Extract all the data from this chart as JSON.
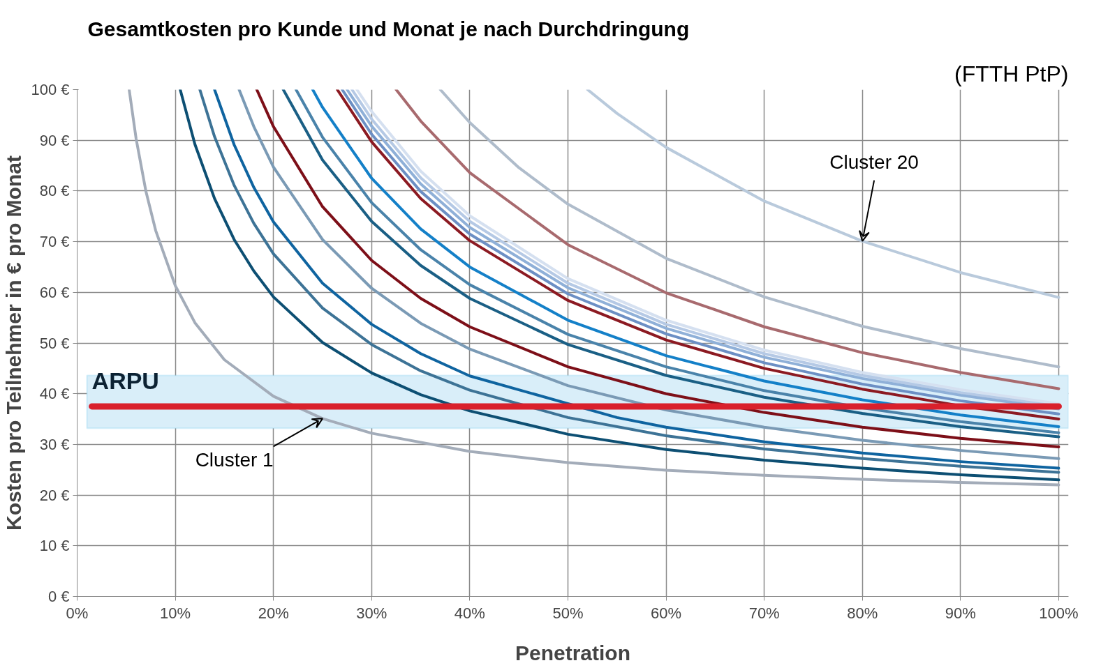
{
  "chart_data": {
    "type": "line",
    "title": "Gesamtkosten pro Kunde und Monat je nach Durchdringung",
    "subtitle": "(FTTH PtP)",
    "xlabel": "Penetration",
    "ylabel": "Kosten pro Teilnehmer in € pro Monat",
    "xlim": [
      0,
      101
    ],
    "ylim": [
      0,
      100
    ],
    "xticks": [
      {
        "value": 0,
        "label": "0%"
      },
      {
        "value": 10,
        "label": "10%"
      },
      {
        "value": 20,
        "label": "20%"
      },
      {
        "value": 30,
        "label": "30%"
      },
      {
        "value": 40,
        "label": "40%"
      },
      {
        "value": 50,
        "label": "50%"
      },
      {
        "value": 60,
        "label": "60%"
      },
      {
        "value": 70,
        "label": "70%"
      },
      {
        "value": 80,
        "label": "80%"
      },
      {
        "value": 90,
        "label": "90%"
      },
      {
        "value": 100,
        "label": "100%"
      }
    ],
    "yticks": [
      {
        "value": 0,
        "label": "0 €"
      },
      {
        "value": 10,
        "label": "10 €"
      },
      {
        "value": 20,
        "label": "20 €"
      },
      {
        "value": 30,
        "label": "30 €"
      },
      {
        "value": 40,
        "label": "40 €"
      },
      {
        "value": 50,
        "label": "50 €"
      },
      {
        "value": 60,
        "label": "60 €"
      },
      {
        "value": 70,
        "label": "70 €"
      },
      {
        "value": 80,
        "label": "80 €"
      },
      {
        "value": 90,
        "label": "90 €"
      },
      {
        "value": 100,
        "label": "100 €"
      }
    ],
    "grid": true,
    "series": [
      {
        "color": "#d5e0f0",
        "x": [
          28.5,
          30,
          35,
          40,
          50,
          60,
          70,
          80,
          90,
          100
        ],
        "values": [
          100,
          95.7,
          83.9,
          75.1,
          62.7,
          54.5,
          48.6,
          44.2,
          40.8,
          38.0
        ]
      },
      {
        "color": "#b5c9e5",
        "x": [
          28,
          30,
          35,
          40,
          50,
          60,
          70,
          80,
          90,
          100
        ],
        "values": [
          100,
          94.2,
          82.6,
          74.0,
          61.8,
          53.7,
          47.9,
          43.6,
          40.2,
          37.5
        ]
      },
      {
        "color": "#8fb0d8",
        "x": [
          27.5,
          30,
          35,
          40,
          50,
          60,
          70,
          80,
          90,
          100
        ],
        "values": [
          100,
          92.8,
          81.4,
          72.8,
          60.9,
          52.9,
          47.2,
          43.0,
          39.7,
          37.0
        ]
      },
      {
        "color": "#6c8fc4",
        "x": [
          27,
          30,
          35,
          40,
          50,
          60,
          70,
          80,
          90,
          100
        ],
        "values": [
          100,
          91.2,
          79.9,
          71.5,
          59.7,
          51.8,
          46.1,
          41.9,
          38.6,
          36.0
        ]
      },
      {
        "color": "#b9cadc",
        "x": [
          52,
          55,
          60,
          70,
          80,
          90,
          100
        ],
        "values": [
          100,
          95.3,
          88.6,
          78.0,
          70.1,
          63.9,
          59.0
        ]
      },
      {
        "color": "#afbccb",
        "x": [
          37,
          40,
          45,
          50,
          60,
          70,
          80,
          90,
          100
        ],
        "values": [
          100,
          93.5,
          84.6,
          77.4,
          66.7,
          59.1,
          53.3,
          48.9,
          45.3
        ]
      },
      {
        "color": "#a86a6e",
        "x": [
          32.5,
          35,
          40,
          50,
          60,
          70,
          80,
          90,
          100
        ],
        "values": [
          100,
          93.8,
          83.6,
          69.4,
          59.9,
          53.2,
          48.1,
          44.2,
          41.0
        ]
      },
      {
        "color": "#8c1a22",
        "x": [
          26.5,
          30,
          35,
          40,
          50,
          60,
          70,
          80,
          90,
          100
        ],
        "values": [
          100,
          89.7,
          78.5,
          70.2,
          58.4,
          50.6,
          45.0,
          40.9,
          37.6,
          35.0
        ]
      },
      {
        "color": "#1480c8",
        "x": [
          24,
          25,
          30,
          35,
          40,
          50,
          60,
          70,
          80,
          90,
          100
        ],
        "values": [
          100,
          96.5,
          82.5,
          72.5,
          65.0,
          54.5,
          47.5,
          42.5,
          38.8,
          35.8,
          33.5
        ]
      },
      {
        "color": "#4a83aa",
        "x": [
          22.3,
          25,
          30,
          35,
          40,
          50,
          60,
          70,
          80,
          90,
          100
        ],
        "values": [
          100,
          90.6,
          77.7,
          68.4,
          61.5,
          51.7,
          45.3,
          40.6,
          37.2,
          34.5,
          32.3
        ]
      },
      {
        "color": "#1a5f85",
        "x": [
          21,
          25,
          30,
          35,
          40,
          50,
          60,
          70,
          80,
          90,
          100
        ],
        "values": [
          100,
          86.1,
          74.0,
          65.3,
          58.8,
          49.7,
          43.6,
          39.3,
          36.1,
          33.5,
          31.5
        ]
      },
      {
        "color": "#7d0f18",
        "x": [
          18.3,
          20,
          25,
          30,
          35,
          40,
          50,
          60,
          70,
          80,
          90,
          100
        ],
        "values": [
          100,
          92.7,
          76.9,
          66.3,
          58.8,
          53.2,
          45.3,
          40.0,
          36.3,
          33.4,
          31.2,
          29.5
        ]
      },
      {
        "color": "#7a9ab5",
        "x": [
          16.5,
          18,
          20,
          25,
          30,
          35,
          40,
          50,
          60,
          70,
          80,
          90,
          100
        ],
        "values": [
          100,
          92.7,
          84.7,
          70.4,
          60.8,
          53.9,
          48.8,
          41.6,
          36.8,
          33.4,
          30.8,
          28.8,
          27.2
        ]
      },
      {
        "color": "#0f64a0",
        "x": [
          14,
          16,
          18,
          20,
          25,
          30,
          35,
          40,
          55,
          60,
          70,
          80,
          90,
          100
        ],
        "values": [
          100,
          89.1,
          80.7,
          73.9,
          61.8,
          53.7,
          47.9,
          43.5,
          35.3,
          33.4,
          30.5,
          28.3,
          26.6,
          25.3
        ]
      },
      {
        "color": "#3d7396",
        "x": [
          12.5,
          14,
          16,
          18,
          20,
          25,
          30,
          35,
          40,
          50,
          60,
          70,
          80,
          90,
          100
        ],
        "values": [
          100,
          90.7,
          81.1,
          73.6,
          67.6,
          56.9,
          49.7,
          44.5,
          40.7,
          35.3,
          31.7,
          29.1,
          27.2,
          25.7,
          24.5
        ]
      },
      {
        "color": "#0d4f73",
        "x": [
          10.5,
          12,
          14,
          16,
          18,
          20,
          25,
          30,
          35,
          40,
          50,
          60,
          70,
          80,
          90,
          100
        ],
        "values": [
          100,
          89.2,
          78.5,
          70.4,
          64.2,
          59.1,
          50.1,
          44.1,
          39.8,
          36.6,
          32.0,
          29.0,
          26.9,
          25.3,
          24.0,
          23.0
        ]
      },
      {
        "color": "#a3acb9",
        "x": [
          5.3,
          6,
          7,
          8,
          10,
          12,
          15,
          20,
          25,
          30,
          40,
          50,
          60,
          70,
          80,
          90,
          100
        ],
        "values": [
          100,
          90.4,
          80.0,
          72.2,
          61.3,
          54.0,
          46.7,
          39.5,
          35.1,
          32.2,
          28.6,
          26.4,
          24.9,
          23.9,
          23.1,
          22.5,
          22.0
        ]
      }
    ],
    "bands": [
      {
        "axis": "y",
        "from": 33.2,
        "to": 43.6,
        "color": "#d9eef9"
      }
    ],
    "ref_lines": [
      {
        "axis": "y",
        "value": 37.5,
        "label": "ARPU",
        "color": "#d9202c"
      }
    ],
    "annotations": [
      {
        "text": "Cluster 1",
        "x": 25,
        "y": 35.1
      },
      {
        "text": "Cluster 20",
        "x": 80,
        "y": 70.1
      }
    ]
  }
}
